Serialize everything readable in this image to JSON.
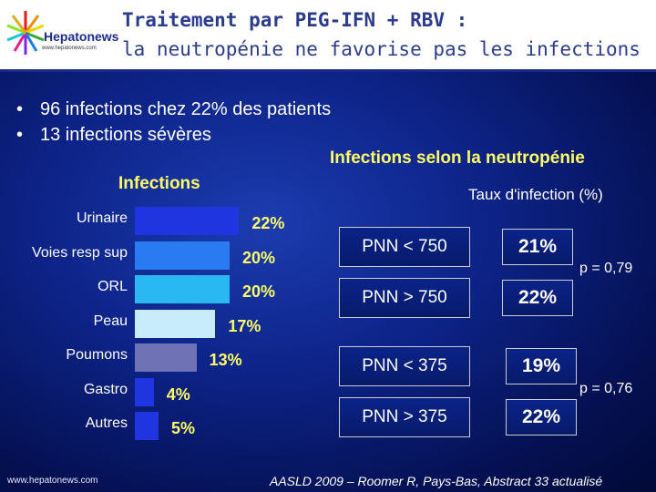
{
  "header": {
    "logo_name": "Hepatonews",
    "logo_url": "www.hepatonews.com",
    "title_line1": "Traitement par PEG-IFN + RBV :",
    "title_line2": "la neutropénie ne favorise pas les infections"
  },
  "bullets": [
    "96 infections chez 22% des patients",
    "13 infections sévères"
  ],
  "infections_title": "Infections",
  "chart_data": {
    "type": "bar",
    "title": "Infections",
    "categories": [
      "Urinaire",
      "Voies resp sup",
      "ORL",
      "Peau",
      "Poumons",
      "Gastro",
      "Autres"
    ],
    "values": [
      22,
      20,
      20,
      17,
      13,
      4,
      5
    ],
    "value_labels": [
      "22%",
      "20%",
      "20%",
      "17%",
      "13%",
      "4%",
      "5%"
    ],
    "bar_colors": [
      "#1f35e0",
      "#2a7bf2",
      "#29b8f2",
      "#c8ecfb",
      "#6f72b4",
      "#1f35e0",
      "#1f35e0"
    ]
  },
  "neutropenie": {
    "title": "Infections selon la neutropénie",
    "rate_header": "Taux d'infection (%)",
    "rows": [
      {
        "label": "PNN < 750",
        "rate": "21%"
      },
      {
        "label": "PNN > 750",
        "rate": "22%"
      },
      {
        "label": "PNN < 375",
        "rate": "19%"
      },
      {
        "label": "PNN > 375",
        "rate": "22%"
      }
    ],
    "p_value_1": "p = 0,79",
    "p_value_2": "p = 0,76"
  },
  "footer": {
    "url": "www.hepatonews.com",
    "citation": "AASLD 2009 – Roomer R, Pays-Bas, Abstract 33 actualisé"
  }
}
